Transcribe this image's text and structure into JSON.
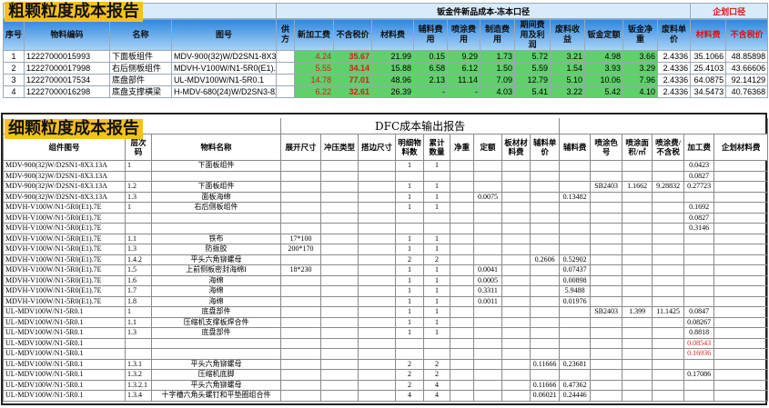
{
  "coarse_report": {
    "title": "粗颗粒度成本报告",
    "group_header": "钣金件新品成本-冻本口径",
    "planning_header": "企划口径",
    "columns": [
      "序号",
      "物料编码",
      "名称",
      "图号",
      "供方",
      "新加工费",
      "不含税价",
      "材料费",
      "辅料费用",
      "喷涂费用",
      "制造费用",
      "期间费用及利润",
      "废料收益",
      "钣金定额",
      "钣金净重",
      "废料单价",
      "材料费",
      "不含税价"
    ],
    "rows": [
      [
        "1",
        "12227000015993",
        "下面板组件",
        "MDV-900(32)W/D2SN1-8X3.13A",
        null,
        "4.24",
        "35.67",
        "21.99",
        "0.15",
        "9.29",
        "1.73",
        "5.72",
        "3.21",
        "4.98",
        "3.66",
        "2.4336",
        "35.1066",
        "48.85898"
      ],
      [
        "2",
        "12227000017998",
        "右后侧板组件",
        "MDVH-V100W/N1-5R0(E1).7E",
        null,
        "5.55",
        "34.14",
        "15.88",
        "6.58",
        "6.12",
        "1.50",
        "5.59",
        "1.54",
        "3.93",
        "3.29",
        "2.4336",
        "25.4103",
        "43.66606"
      ],
      [
        "3",
        "12227000017534",
        "底盘部件",
        "UL-MDV100W/N1-5R0.1",
        null,
        "14.78",
        "77.01",
        "48.96",
        "2.13",
        "11.14",
        "7.09",
        "12.79",
        "5.10",
        "10.06",
        "7.96",
        "2.4336",
        "64.0875",
        "92.14129"
      ],
      [
        "4",
        "12227000016298",
        "底盘支撑横梁",
        "H-MDV-680(24)W/D2SN3-8X3.1-1",
        null,
        "6.22",
        "32.61",
        "26.39",
        "-",
        "-",
        "4.03",
        "5.41",
        "3.22",
        "5.42",
        "4.10",
        "2.4336",
        "34.5473",
        "40.76368"
      ]
    ]
  },
  "fine_report": {
    "title": "细颗粒度成本报告",
    "report_header": "DFC成本输出报告",
    "columns": [
      "组件图号",
      "层次码",
      "物料名称",
      "展开尺寸",
      "冲压类型",
      "搭边尺寸",
      "明细物料数",
      "累计数量",
      "净重",
      "定额",
      "板材材料费",
      "辅料单价",
      "辅料费",
      "喷涂色号",
      "喷涂面积/㎡",
      "喷涂费/不含税",
      "加工费",
      "企划材料费"
    ],
    "rows": [
      [
        "MDV-900(32)W/D2SN1-8X3.13A",
        "1",
        "下面板组件",
        null,
        null,
        null,
        "1",
        "1",
        null,
        null,
        null,
        null,
        null,
        null,
        null,
        null,
        "0.0423",
        null
      ],
      [
        "MDV-900(32)W/D2SN1-8X3.13A",
        null,
        null,
        null,
        null,
        null,
        null,
        null,
        null,
        null,
        null,
        null,
        null,
        null,
        null,
        null,
        "0.0827",
        null
      ],
      [
        "MDV-900(32)W/D2SN1-8X3.13A",
        "1.2",
        "下面板组件",
        null,
        null,
        null,
        "1",
        "1",
        null,
        null,
        null,
        null,
        null,
        "SB2403",
        "1.1662",
        "9.28832",
        "0.27723",
        null
      ],
      [
        "MDV-900(32)W/D2SN1-8X3.13A",
        "1.3",
        "面板海绵",
        null,
        null,
        null,
        "1",
        "1",
        null,
        "0.0075",
        null,
        null,
        "0.13482",
        null,
        null,
        null,
        null,
        null
      ],
      [
        "MDVH-V100W/N1-5R0(E1).7E",
        "1",
        "右后侧板组件",
        null,
        null,
        null,
        "1",
        "1",
        null,
        null,
        null,
        null,
        null,
        null,
        null,
        null,
        "0.1692",
        null
      ],
      [
        "MDVH-V100W/N1-5R0(E1).7E",
        null,
        null,
        null,
        null,
        null,
        null,
        null,
        null,
        null,
        null,
        null,
        null,
        null,
        null,
        null,
        "0.0827",
        null
      ],
      [
        "MDVH-V100W/N1-5R0(E1).7E",
        null,
        null,
        null,
        null,
        null,
        null,
        null,
        null,
        null,
        null,
        null,
        null,
        null,
        null,
        null,
        "0.3146",
        null
      ],
      [
        "MDVH-V100W/N1-5R0(E1).7E",
        "1.1",
        "铁布",
        "17*100",
        null,
        null,
        "1",
        "1",
        null,
        null,
        null,
        null,
        null,
        null,
        null,
        null,
        null,
        null
      ],
      [
        "MDVH-V100W/N1-5R0(E1).7E",
        "1.3",
        "防振胶",
        "200*170",
        null,
        null,
        "1",
        "1",
        null,
        null,
        null,
        null,
        null,
        null,
        null,
        null,
        null,
        null
      ],
      [
        "MDVH-V100W/N1-5R0(E1).7E",
        "1.4.2",
        "平头六角铆螺母",
        null,
        null,
        null,
        "2",
        "2",
        null,
        null,
        null,
        "0.2606",
        "0.52902",
        null,
        null,
        null,
        null,
        null
      ],
      [
        "MDVH-V100W/N1-5R0(E1).7E",
        "1.5",
        "上前侧板密封海绵I",
        "18*230",
        null,
        null,
        "1",
        "1",
        null,
        "0.0041",
        null,
        null,
        "0.07437",
        null,
        null,
        null,
        null,
        null
      ],
      [
        "MDVH-V100W/N1-5R0(E1).7E",
        "1.6",
        "海绵",
        null,
        null,
        null,
        "1",
        "1",
        null,
        "0.0005",
        null,
        null,
        "0.00898",
        null,
        null,
        null,
        null,
        null
      ],
      [
        "MDVH-V100W/N1-5R0(E1).7E",
        "1.7",
        "海绵",
        null,
        null,
        null,
        "1",
        "1",
        null,
        "0.3311",
        null,
        null,
        "5.9488",
        null,
        null,
        null,
        null,
        null
      ],
      [
        "MDVH-V100W/N1-5R0(E1).7E",
        "1.8",
        "海绵",
        null,
        null,
        null,
        "1",
        "1",
        null,
        "0.0011",
        null,
        null,
        "0.01976",
        null,
        null,
        null,
        null,
        null
      ],
      [
        "UL-MDV100W/N1-5R0.1",
        "1",
        "底盘部件",
        null,
        null,
        null,
        "1",
        "1",
        null,
        null,
        null,
        null,
        null,
        "SB2403",
        "1.399",
        "11.1425",
        "0.0847",
        null
      ],
      [
        "UL-MDV100W/N1-5R0.1",
        "1.1",
        "压缩机支撑板焊合件",
        null,
        null,
        null,
        "1",
        "1",
        null,
        null,
        null,
        null,
        null,
        null,
        null,
        null,
        "0.08267",
        null
      ],
      [
        "UL-MDV100W/N1-5R0.1",
        "1.3",
        "底盘部件",
        null,
        null,
        null,
        "1",
        "1",
        null,
        null,
        null,
        null,
        null,
        null,
        null,
        null,
        "0.8818",
        null
      ],
      [
        "UL-MDV100W/N1-5R0.1",
        null,
        null,
        null,
        null,
        null,
        null,
        null,
        null,
        null,
        null,
        null,
        null,
        null,
        null,
        null,
        "0.08543",
        null
      ],
      [
        "UL-MDV100W/N1-5R0.1",
        null,
        null,
        null,
        null,
        null,
        null,
        null,
        null,
        null,
        null,
        null,
        null,
        null,
        null,
        null,
        "0.16936",
        null
      ],
      [
        "UL-MDV100W/N1-5R0.1",
        "1.3.1",
        "平头六角铆螺母",
        null,
        null,
        null,
        "2",
        "2",
        null,
        null,
        null,
        "0.11666",
        "0.23681",
        null,
        null,
        null,
        null,
        null
      ],
      [
        "UL-MDV100W/N1-5R0.1",
        "1.3.2",
        "压缩机底脚",
        null,
        null,
        null,
        "2",
        "2",
        null,
        null,
        null,
        null,
        null,
        null,
        null,
        null,
        "0.17086",
        null
      ],
      [
        "UL-MDV100W/N1-5R0.1",
        "1.3.2.1",
        "平头六角铆螺母",
        null,
        null,
        null,
        "2",
        "4",
        null,
        null,
        null,
        "0.11666",
        "0.47362",
        null,
        null,
        null,
        null,
        null
      ],
      [
        "UL-MDV100W/N1-5R0.1",
        "1.3.4",
        "十字槽六角头螺钉和平垫圈组合件",
        null,
        null,
        null,
        "4",
        "4",
        null,
        null,
        null,
        "0.06021",
        "0.24446",
        null,
        null,
        null,
        null,
        null
      ]
    ]
  }
}
